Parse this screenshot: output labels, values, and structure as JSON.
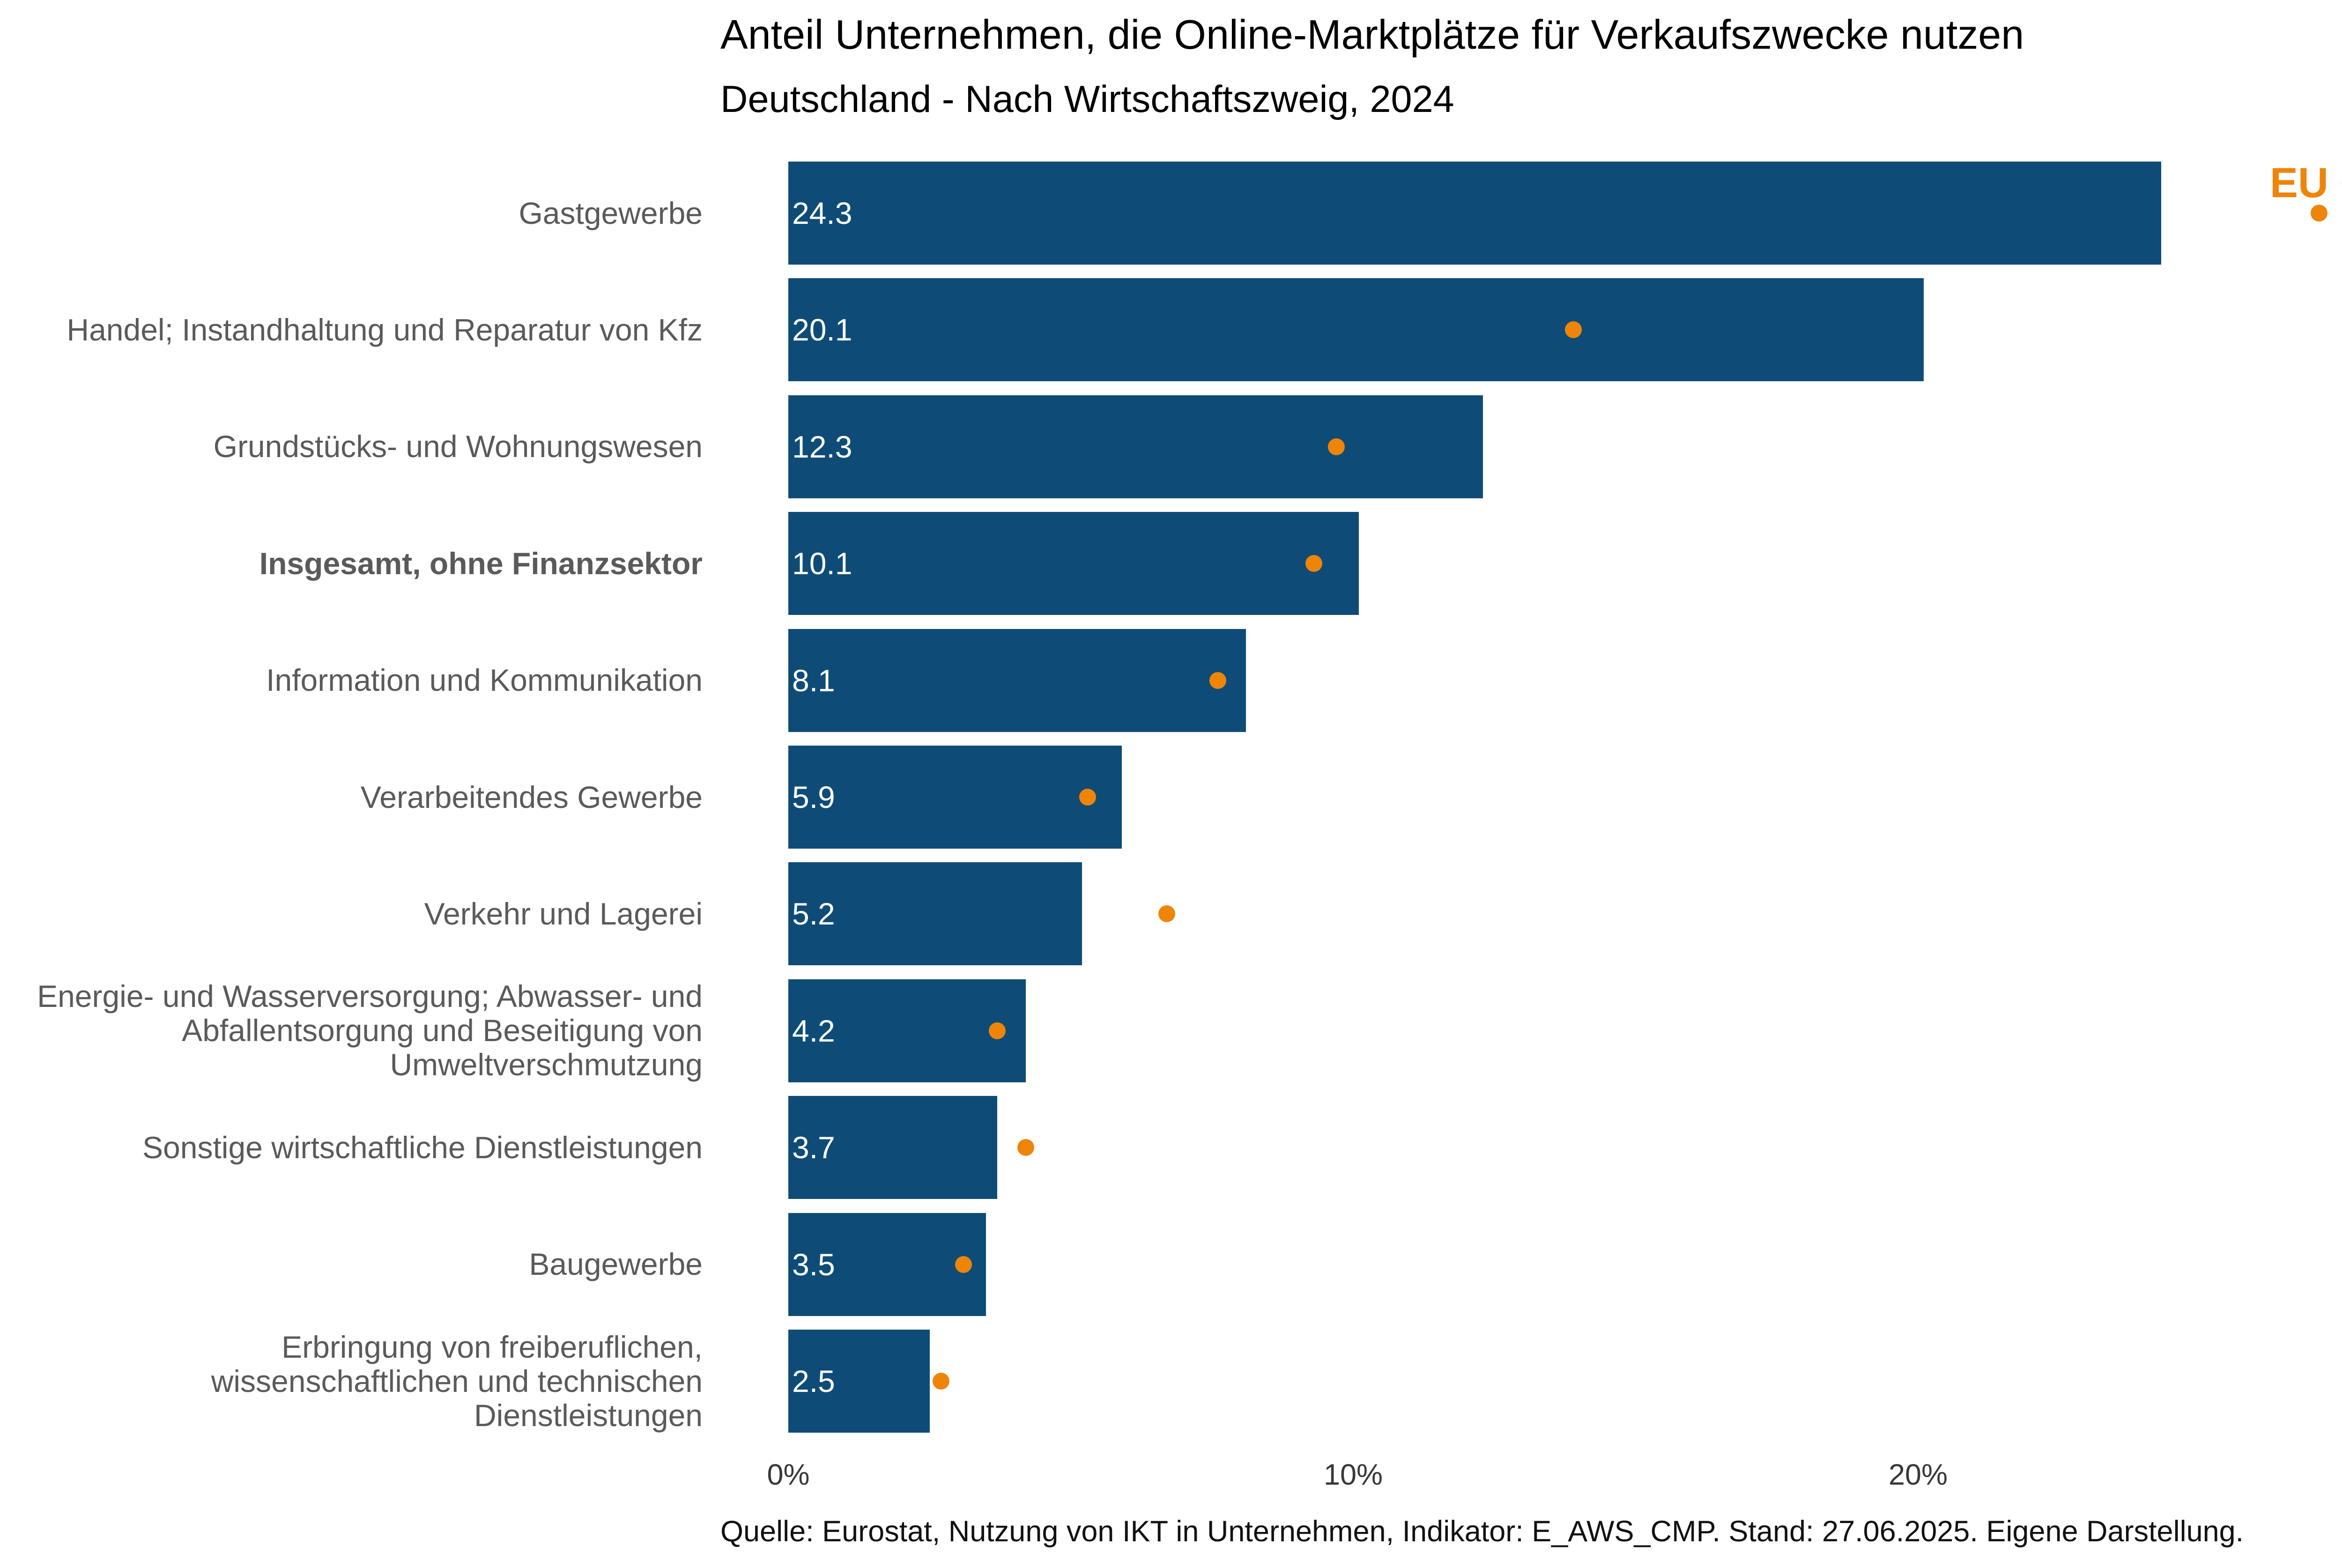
{
  "header": {
    "title": "Anteil Unternehmen, die Online-Marktplätze für Verkaufszwecke nutzen",
    "subtitle": "Deutschland - Nach Wirtschaftszweig, 2024"
  },
  "legend": {
    "label": "EU Ø"
  },
  "source_note": "Quelle: Eurostat, Nutzung von IKT in Unternehmen, Indikator: E_AWS_CMP. Stand: 27.06.2025. Eigene Darstellung.",
  "colors": {
    "bar": "#0e4c77",
    "eu_dot": "#ee8508",
    "category_label": "#5a5a5a",
    "tick_label": "#383838",
    "value_label": "#ffffff",
    "title": "#000000"
  },
  "chart_data": {
    "type": "bar",
    "orientation": "horizontal",
    "title": "Anteil Unternehmen, die Online-Marktplätze für Verkaufszwecke nutzen",
    "subtitle": "Deutschland - Nach Wirtschaftszweig, 2024",
    "unit": "%",
    "grid": false,
    "legend_position": "top-right",
    "xlim": [
      0,
      27.5
    ],
    "x_ticks": [
      "0%",
      "10%",
      "20%"
    ],
    "x_tick_values": [
      0,
      10,
      20
    ],
    "emphasized_category_index": 3,
    "categories": [
      "Gastgewerbe",
      "Handel; Instandhaltung und Reparatur von Kfz",
      "Grundstücks- und Wohnungswesen",
      "Insgesamt, ohne Finanzsektor",
      "Information und Kommunikation",
      "Verarbeitendes Gewerbe",
      "Verkehr und Lagerei",
      "Energie- und Wasserversorgung; Abwasser- und\nAbfallentsorgung und Beseitigung von\nUmweltverschmutzung",
      "Sonstige wirtschaftliche Dienstleistungen",
      "Baugewerbe",
      "Erbringung von freiberuflichen,\nwissenschaftlichen und technischen\nDienstleistungen"
    ],
    "series": [
      {
        "name": "Deutschland",
        "values": [
          24.3,
          20.1,
          12.3,
          10.1,
          8.1,
          5.9,
          5.2,
          4.2,
          3.7,
          3.5,
          2.5
        ]
      },
      {
        "name": "EU Ø",
        "values": [
          27.1,
          13.9,
          9.7,
          9.3,
          7.6,
          5.3,
          6.7,
          3.7,
          4.2,
          3.1,
          2.7
        ]
      }
    ]
  }
}
